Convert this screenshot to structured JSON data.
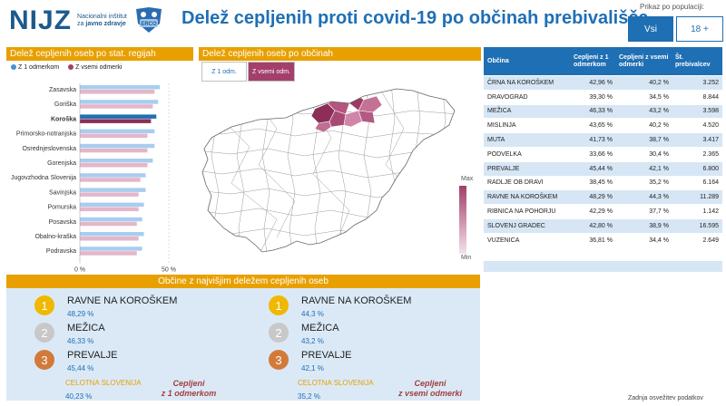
{
  "header": {
    "logo_text": "NIJZ",
    "logo_sub": [
      "Nacionalni inštitut",
      "za",
      "javno zdravje"
    ],
    "badge_text": "ERCO",
    "title": "Delež cepljenih proti covid-19 po občinah prebivališča",
    "population_label": "Prikaz po populaciji:",
    "population_buttons": [
      "Vsi",
      "18 +"
    ]
  },
  "regions_panel": {
    "title": "Delež cepljenih oseb po stat. regijah",
    "legend": [
      {
        "label": "Z 1 odmerkom",
        "color": "#4a90d9"
      },
      {
        "label": "Z vsemi odmerki",
        "color": "#a33f6a"
      }
    ]
  },
  "chart_data": {
    "type": "bar",
    "orientation": "horizontal",
    "categories": [
      "Zasavska",
      "Goriška",
      "Koroška",
      "Primorsko-notranjska",
      "Osrednjeslovenska",
      "Gorenjska",
      "Jugovzhodna Slovenija",
      "Savinjska",
      "Pomurska",
      "Posavska",
      "Obalno-kraška",
      "Podravska"
    ],
    "highlight": "Koroška",
    "series": [
      {
        "name": "Z 1 odmerkom",
        "values": [
          45,
          44,
          43,
          42,
          42,
          41,
          37,
          37,
          36,
          35,
          36,
          35
        ]
      },
      {
        "name": "Z vsemi odmerki",
        "values": [
          42,
          41,
          40,
          38,
          38,
          38,
          34,
          33,
          33,
          32,
          33,
          32
        ]
      }
    ],
    "xlim": [
      0,
      50
    ],
    "xtick_labels": [
      "0 %",
      "50 %"
    ]
  },
  "map_panel": {
    "title": "Delež cepljenih oseb po občinah",
    "toggles": [
      "Z 1 odm.",
      "Z vsemi odm."
    ],
    "scale_max": "Max",
    "scale_min": "Min"
  },
  "table": {
    "headers": [
      "Občina",
      "Cepljeni z 1 odmerkom",
      "Cepljeni z vsemi odmerki",
      "Št. prebivalcev"
    ],
    "rows": [
      [
        "ČRNA NA KOROŠKEM",
        "42,96 %",
        "40,2 %",
        "3.252"
      ],
      [
        "DRAVOGRAD",
        "39,30 %",
        "34,5 %",
        "8.844"
      ],
      [
        "MEŽICA",
        "46,33 %",
        "43,2 %",
        "3.598"
      ],
      [
        "MISLINJA",
        "43,65 %",
        "40,2 %",
        "4.520"
      ],
      [
        "MUTA",
        "41,73 %",
        "38,7 %",
        "3.417"
      ],
      [
        "PODVELKA",
        "33,66 %",
        "30,4 %",
        "2.365"
      ],
      [
        "PREVALJE",
        "45,44 %",
        "42,1 %",
        "6.800"
      ],
      [
        "RADLJE OB DRAVI",
        "38,45 %",
        "35,2 %",
        "6.164"
      ],
      [
        "RAVNE NA KOROŠKEM",
        "48,29 %",
        "44,3 %",
        "11.289"
      ],
      [
        "RIBNICA NA POHORJU",
        "42,29 %",
        "37,7 %",
        "1.142"
      ],
      [
        "SLOVENJ GRADEC",
        "42,80 %",
        "38,9 %",
        "16.595"
      ],
      [
        "VUZENICA",
        "36,81 %",
        "34,4 %",
        "2.649"
      ]
    ]
  },
  "top_panel": {
    "title": "Občine z najvišjim deležem cepljenih oseb",
    "first_dose": {
      "ranks": [
        {
          "num": "1",
          "name": "RAVNE NA KOROŠKEM",
          "value": "48,29 %"
        },
        {
          "num": "2",
          "name": "MEŽICA",
          "value": "46,33 %"
        },
        {
          "num": "3",
          "name": "PREVALJE",
          "value": "45,44 %"
        }
      ],
      "total_label": "CELOTNA SLOVENIJA",
      "total_value": "40,23 %",
      "note": [
        "Cepljeni",
        "z 1 odmerkom"
      ]
    },
    "all_doses": {
      "ranks": [
        {
          "num": "1",
          "name": "RAVNE NA KOROŠKEM",
          "value": "44,3 %"
        },
        {
          "num": "2",
          "name": "MEŽICA",
          "value": "43,2 %"
        },
        {
          "num": "3",
          "name": "PREVALJE",
          "value": "42,1 %"
        }
      ],
      "total_label": "CELOTNA SLOVENIJA",
      "total_value": "35,2 %",
      "note": [
        "Cepljeni",
        "z vsemi odmerki"
      ]
    },
    "medal_colors": [
      "#f0b800",
      "#c8c8c8",
      "#d27a3a"
    ]
  },
  "footer": {
    "note": "Zadnja osvežitev podatkov"
  }
}
